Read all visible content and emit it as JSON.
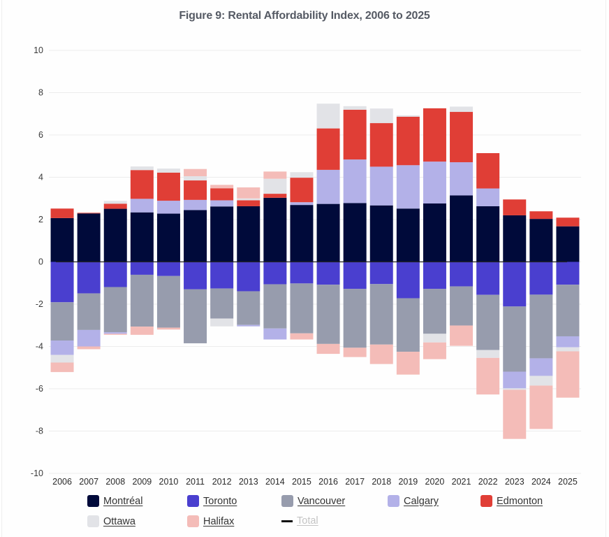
{
  "chart_data": {
    "type": "bar",
    "stacked": true,
    "title": "Figure 9: Rental Affordability Index, 2006 to 2025",
    "xlabel": "",
    "ylabel": "",
    "ylim": [
      -10,
      10
    ],
    "yticks": [
      10,
      8,
      6,
      4,
      2,
      0,
      -2,
      -4,
      -6,
      -8,
      -10
    ],
    "grid": true,
    "legend_position": "bottom",
    "categories": [
      "2006",
      "2007",
      "2008",
      "2009",
      "2010",
      "2011",
      "2012",
      "2013",
      "2014",
      "2015",
      "2016",
      "2017",
      "2018",
      "2019",
      "2020",
      "2021",
      "2022",
      "2023",
      "2024",
      "2025"
    ],
    "series": [
      {
        "name": "Montréal",
        "color": "#000a3a",
        "values": [
          2.07,
          2.29,
          2.51,
          2.34,
          2.28,
          2.45,
          2.62,
          2.63,
          3.03,
          2.69,
          2.74,
          2.78,
          2.67,
          2.52,
          2.76,
          3.14,
          2.63,
          2.2,
          2.03,
          1.68
        ]
      },
      {
        "name": "Toronto",
        "color": "#4a3fcf",
        "values": [
          -1.91,
          -1.49,
          -1.19,
          -0.61,
          -0.67,
          -1.3,
          -1.26,
          -1.39,
          -1.06,
          -1.02,
          -1.08,
          -1.28,
          -1.05,
          -1.72,
          -1.28,
          -1.16,
          -1.56,
          -2.11,
          -1.55,
          -1.08
        ]
      },
      {
        "name": "Vancouver",
        "color": "#979cad",
        "values": [
          -1.81,
          -1.73,
          -2.14,
          -2.45,
          -2.44,
          -2.55,
          -1.42,
          -1.59,
          -2.09,
          -2.36,
          -2.8,
          -2.78,
          -2.86,
          -2.53,
          -2.12,
          -1.85,
          -2.61,
          -3.08,
          -3.01,
          -2.44
        ]
      },
      {
        "name": "Calgary",
        "color": "#b3b1e8",
        "values": [
          -0.68,
          -0.78,
          -0.07,
          0.64,
          0.61,
          0.48,
          0.29,
          -0.07,
          -0.52,
          0.13,
          1.61,
          2.06,
          1.83,
          2.05,
          1.98,
          1.57,
          0.84,
          -0.79,
          -0.83,
          -0.52
        ]
      },
      {
        "name": "Edmonton",
        "color": "#e03e36",
        "values": [
          0.45,
          0.03,
          0.24,
          1.36,
          1.33,
          0.92,
          0.57,
          0.28,
          0.19,
          1.16,
          1.96,
          2.35,
          2.06,
          2.29,
          2.52,
          2.38,
          1.67,
          0.75,
          0.36,
          0.41
        ]
      },
      {
        "name": "Ottawa",
        "color": "#e2e3e7",
        "values": [
          -0.36,
          0,
          0.13,
          0.17,
          0.19,
          0.2,
          -0.37,
          0.09,
          0.71,
          0.26,
          1.17,
          0.17,
          0.69,
          0.07,
          -0.41,
          0.25,
          -0.37,
          -0.07,
          -0.46,
          -0.19
        ]
      },
      {
        "name": "Halifax",
        "color": "#f4bcb8",
        "values": [
          -0.45,
          -0.13,
          -0.05,
          -0.39,
          -0.09,
          0.34,
          0.16,
          0.52,
          0.34,
          -0.29,
          -0.47,
          -0.44,
          -0.92,
          -1.08,
          -0.79,
          -0.96,
          -1.73,
          -2.32,
          -2.05,
          -2.19
        ]
      }
    ],
    "total_series": {
      "name": "Total",
      "visible": false
    }
  },
  "legend": [
    {
      "label": "Montréal",
      "color": "#000a3a",
      "kind": "swatch",
      "enabled": true
    },
    {
      "label": "Toronto",
      "color": "#4a3fcf",
      "kind": "swatch",
      "enabled": true
    },
    {
      "label": "Vancouver",
      "color": "#979cad",
      "kind": "swatch",
      "enabled": true
    },
    {
      "label": "Calgary",
      "color": "#b3b1e8",
      "kind": "swatch",
      "enabled": true
    },
    {
      "label": "Edmonton",
      "color": "#e03e36",
      "kind": "swatch",
      "enabled": true
    },
    {
      "label": "Ottawa",
      "color": "#e2e3e7",
      "kind": "swatch",
      "enabled": true
    },
    {
      "label": "Halifax",
      "color": "#f4bcb8",
      "kind": "swatch",
      "enabled": true
    },
    {
      "label": "Total",
      "color": "#111111",
      "kind": "line",
      "enabled": false
    }
  ]
}
